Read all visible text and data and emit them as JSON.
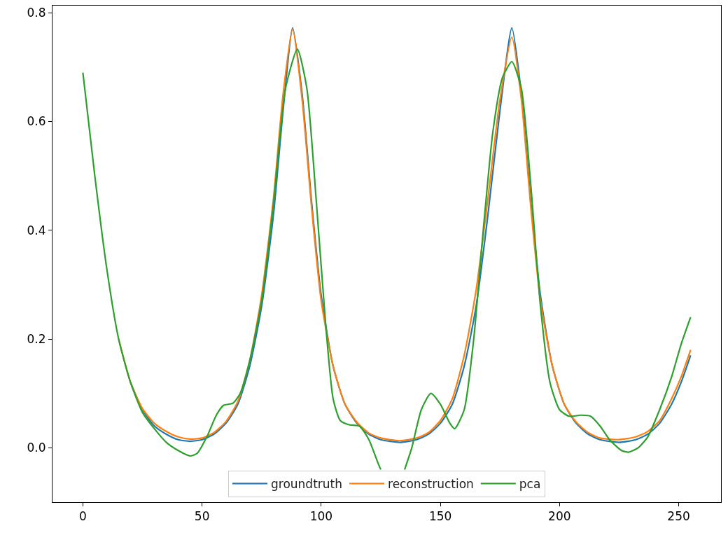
{
  "chart_data": {
    "type": "line",
    "xlim": [
      -12.75,
      267.75
    ],
    "xticks": [
      0,
      50,
      100,
      150,
      200,
      250
    ],
    "ylim": [
      -0.1,
      0.813
    ],
    "yticks": [
      {
        "value": 0,
        "label": "0.0"
      },
      {
        "value": 0.2,
        "label": "0.2"
      },
      {
        "value": 0.4,
        "label": "0.4"
      },
      {
        "value": 0.6,
        "label": "0.6"
      },
      {
        "value": 0.8,
        "label": "0.8"
      }
    ],
    "grid": false,
    "legend": "bottom",
    "marker": "none",
    "line_style": "solid",
    "series": [
      {
        "name": "groundtruth",
        "color": "#1f77b4",
        "x": [
          20,
          25,
          30,
          35,
          40,
          45,
          50,
          55,
          60,
          65,
          70,
          75,
          80,
          84,
          88,
          92,
          96,
          100,
          105,
          110,
          115,
          120,
          125,
          133,
          140,
          145,
          150,
          155,
          160,
          165,
          170,
          175,
          180,
          184,
          188,
          192,
          197,
          202,
          207,
          212,
          217,
          225,
          232,
          237,
          242,
          247,
          251,
          255
        ],
        "values": [
          0.12,
          0.07,
          0.04,
          0.025,
          0.015,
          0.012,
          0.015,
          0.025,
          0.045,
          0.08,
          0.15,
          0.26,
          0.43,
          0.62,
          0.772,
          0.65,
          0.45,
          0.28,
          0.15,
          0.08,
          0.045,
          0.025,
          0.015,
          0.01,
          0.015,
          0.025,
          0.045,
          0.08,
          0.15,
          0.26,
          0.43,
          0.62,
          0.772,
          0.65,
          0.45,
          0.28,
          0.15,
          0.08,
          0.045,
          0.025,
          0.015,
          0.01,
          0.015,
          0.025,
          0.045,
          0.08,
          0.12,
          0.17
        ]
      },
      {
        "name": "reconstruction",
        "color": "#ff7f0e",
        "x": [
          15,
          20,
          25,
          30,
          35,
          40,
          45,
          50,
          55,
          60,
          65,
          70,
          75,
          80,
          84,
          88,
          92,
          96,
          100,
          105,
          110,
          115,
          120,
          125,
          133,
          140,
          145,
          150,
          155,
          160,
          165,
          170,
          175,
          180,
          184,
          188,
          192,
          197,
          202,
          207,
          212,
          217,
          225,
          232,
          237,
          242,
          247,
          251,
          255
        ],
        "values": [
          0.2,
          0.12,
          0.072,
          0.045,
          0.03,
          0.02,
          0.016,
          0.018,
          0.028,
          0.048,
          0.085,
          0.16,
          0.28,
          0.46,
          0.65,
          0.77,
          0.64,
          0.44,
          0.27,
          0.15,
          0.08,
          0.047,
          0.027,
          0.018,
          0.013,
          0.018,
          0.028,
          0.05,
          0.09,
          0.17,
          0.29,
          0.46,
          0.64,
          0.755,
          0.64,
          0.44,
          0.27,
          0.15,
          0.08,
          0.047,
          0.028,
          0.018,
          0.015,
          0.02,
          0.03,
          0.05,
          0.09,
          0.13,
          0.18
        ]
      },
      {
        "name": "pca",
        "color": "#2ca02c",
        "x": [
          0,
          5,
          10,
          15,
          20,
          25,
          30,
          35,
          40,
          45,
          48,
          52,
          56,
          59,
          63,
          66,
          70,
          75,
          80,
          85,
          90,
          94,
          98,
          102,
          105,
          108,
          112,
          116,
          120,
          124,
          125,
          128,
          131,
          135,
          138,
          142,
          146,
          150,
          154,
          156,
          160,
          164,
          168,
          172,
          176,
          180,
          184,
          188,
          192,
          196,
          200,
          204,
          209,
          213,
          217,
          221,
          226,
          229,
          233,
          237,
          242,
          247,
          251,
          255
        ],
        "values": [
          0.69,
          0.5,
          0.33,
          0.2,
          0.12,
          0.065,
          0.035,
          0.01,
          -0.005,
          -0.015,
          -0.01,
          0.02,
          0.06,
          0.078,
          0.082,
          0.1,
          0.16,
          0.27,
          0.45,
          0.66,
          0.733,
          0.66,
          0.45,
          0.22,
          0.09,
          0.05,
          0.042,
          0.04,
          0.015,
          -0.03,
          -0.04,
          null,
          null,
          -0.04,
          0,
          0.07,
          0.1,
          0.08,
          0.045,
          0.035,
          0.07,
          0.2,
          0.4,
          0.58,
          0.68,
          0.71,
          0.66,
          0.48,
          0.26,
          0.12,
          0.07,
          0.058,
          0.06,
          0.058,
          0.04,
          0.015,
          -0.005,
          -0.008,
          0,
          0.02,
          0.07,
          0.13,
          0.19,
          0.24
        ]
      }
    ]
  }
}
